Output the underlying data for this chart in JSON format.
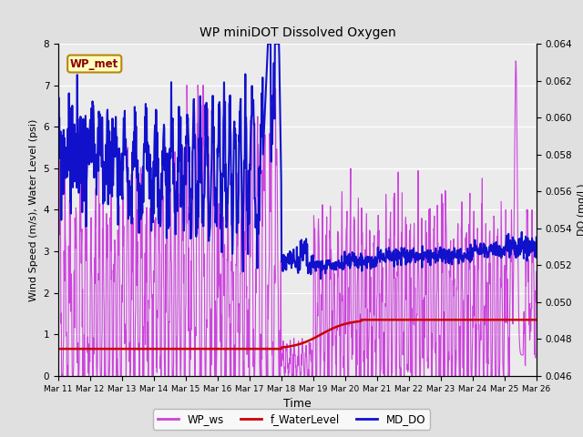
{
  "title": "WP miniDOT Dissolved Oxygen",
  "xlabel": "Time",
  "ylabel_left": "Wind Speed (m/s), Water Level (psi)",
  "ylabel_right": "DO (mg/L)",
  "ylim_left": [
    0.0,
    8.0
  ],
  "ylim_right": [
    0.046,
    0.064
  ],
  "yticks_left": [
    0.0,
    1.0,
    2.0,
    3.0,
    4.0,
    5.0,
    6.0,
    7.0,
    8.0
  ],
  "yticks_right": [
    0.046,
    0.048,
    0.05,
    0.052,
    0.054,
    0.056,
    0.058,
    0.06,
    0.062,
    0.064
  ],
  "x_tick_labels": [
    "Mar 11",
    "Mar 12",
    "Mar 13",
    "Mar 14",
    "Mar 15",
    "Mar 16",
    "Mar 17",
    "Mar 18",
    "Mar 19",
    "Mar 20",
    "Mar 21",
    "Mar 22",
    "Mar 23",
    "Mar 24",
    "Mar 25",
    "Mar 26"
  ],
  "bg_color": "#e0e0e0",
  "plot_bg_color": "#ebebeb",
  "legend_box_color": "#b8860b",
  "legend_box_bg": "#ffffc0",
  "legend_box_text": "WP_met",
  "legend_box_text_color": "#8b0000",
  "wp_ws_color": "#cc44dd",
  "f_waterlevel_color": "#cc0000",
  "md_do_color": "#1111cc",
  "line_lw_ws": 0.8,
  "line_lw_wl": 1.8,
  "line_lw_do": 1.5
}
